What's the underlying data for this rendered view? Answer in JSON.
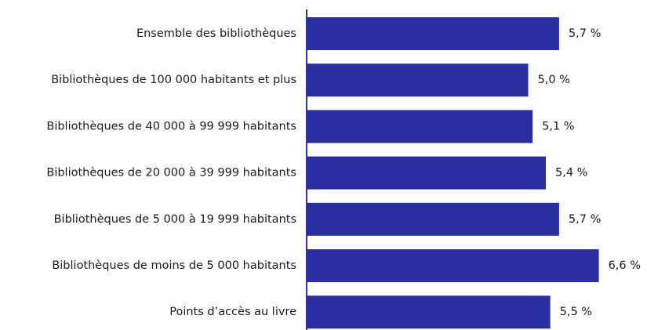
{
  "chart_data": {
    "type": "hbar",
    "categories": [
      "Ensemble des bibliothèques",
      "Bibliothèques de 100 000 habitants et plus",
      "Bibliothèques de 40 000 à 99 999 habitants",
      "Bibliothèques de 20 000 à 39 999 habitants",
      "Bibliothèques de 5 000 à 19 999 habitants",
      "Bibliothèques de moins de 5 000 habitants",
      "Points d’accès au livre"
    ],
    "values": [
      5.7,
      5.0,
      5.1,
      5.4,
      5.7,
      6.6,
      5.5
    ],
    "value_labels": [
      "5,7 %",
      "5,0 %",
      "5,1 %",
      "5,4 %",
      "5,7 %",
      "6,6 %",
      "5,5 %"
    ],
    "color": "#2a2e9f"
  }
}
